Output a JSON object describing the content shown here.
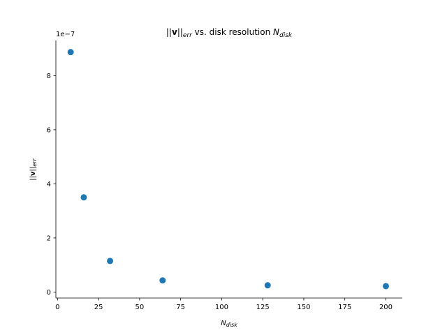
{
  "chart_data": {
    "type": "scatter",
    "title": "||v||_err vs. disk resolution N_disk",
    "title_parts": {
      "norm_open": "||",
      "v": "v",
      "norm_close": "||",
      "err": "err",
      "mid": " vs. disk resolution ",
      "N": "N",
      "disk": "disk"
    },
    "xlabel": "N_disk",
    "xlabel_parts": {
      "N": "N",
      "disk": "disk"
    },
    "ylabel": "||v||_err",
    "ylabel_parts": {
      "norm_open": "||",
      "v": "v",
      "norm_close": "||",
      "err": "err"
    },
    "y_offset_text": "1e−7",
    "xlim": [
      -1,
      210
    ],
    "ylim": [
      -0.22,
      9.3
    ],
    "y_scale_multiplier": 1e-07,
    "xticks": [
      0,
      25,
      50,
      75,
      100,
      125,
      150,
      175,
      200
    ],
    "xtick_labels": [
      "0",
      "25",
      "50",
      "75",
      "100",
      "125",
      "150",
      "175",
      "200"
    ],
    "yticks": [
      0,
      2,
      4,
      6,
      8
    ],
    "ytick_labels": [
      "0",
      "2",
      "4",
      "6",
      "8"
    ],
    "grid": false,
    "series": [
      {
        "color": "#1f77b4",
        "x": [
          8,
          16,
          32,
          64,
          128,
          200
        ],
        "y": [
          8.87,
          3.5,
          1.15,
          0.43,
          0.25,
          0.22
        ]
      }
    ]
  }
}
